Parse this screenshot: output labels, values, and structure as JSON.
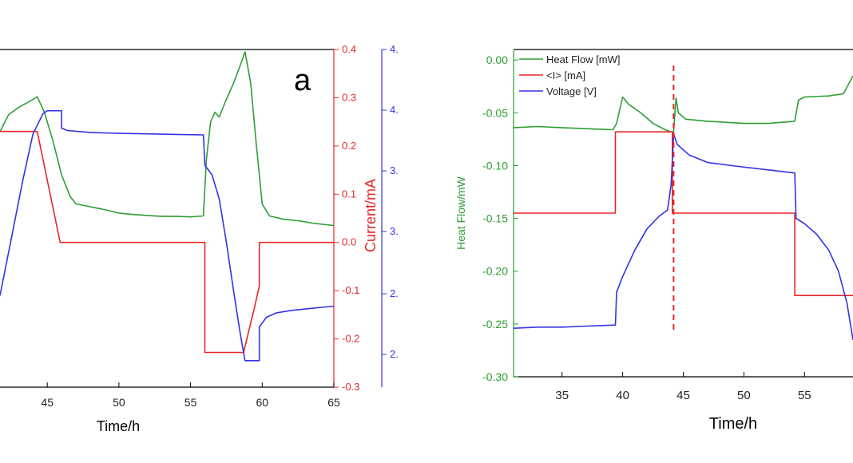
{
  "chart_data": [
    {
      "type": "line",
      "panel_label": "a",
      "xlabel": "Time/h",
      "x_ticks": [
        "45",
        "50",
        "55",
        "60",
        "65"
      ],
      "xlim": [
        41.7,
        65
      ],
      "y_right_current": {
        "label": "Current/mA",
        "color": "#e8262a",
        "ticks": [
          "0.4",
          "0.3",
          "0.2",
          "0.1",
          "0.0",
          "-0.1",
          "-0.2",
          "-0.3"
        ],
        "ylim": [
          -0.3,
          0.4
        ]
      },
      "y_right_voltage": {
        "ticks": [
          "4.",
          "4.",
          "3.",
          "3.",
          "2.",
          "2."
        ],
        "color": "#3232e6"
      },
      "series": [
        {
          "color": "#2e9e34",
          "points": [
            [
              41.7,
              0.23
            ],
            [
              42.3,
              0.265
            ],
            [
              43.0,
              0.28
            ],
            [
              43.8,
              0.293
            ],
            [
              44.3,
              0.302
            ],
            [
              44.8,
              0.27
            ],
            [
              45.4,
              0.21
            ],
            [
              46.0,
              0.14
            ],
            [
              46.6,
              0.095
            ],
            [
              47.0,
              0.08
            ],
            [
              48.0,
              0.074
            ],
            [
              49.0,
              0.068
            ],
            [
              50.0,
              0.061
            ],
            [
              51.0,
              0.058
            ],
            [
              52.0,
              0.056
            ],
            [
              53.0,
              0.054
            ],
            [
              54.0,
              0.054
            ],
            [
              55.0,
              0.053
            ],
            [
              55.9,
              0.055
            ],
            [
              56.1,
              0.17
            ],
            [
              56.4,
              0.25
            ],
            [
              56.7,
              0.27
            ],
            [
              57.0,
              0.26
            ],
            [
              57.4,
              0.29
            ],
            [
              58.0,
              0.33
            ],
            [
              58.5,
              0.37
            ],
            [
              58.8,
              0.395
            ],
            [
              59.2,
              0.33
            ],
            [
              59.6,
              0.2
            ],
            [
              60.0,
              0.08
            ],
            [
              60.5,
              0.055
            ],
            [
              61.5,
              0.048
            ],
            [
              62.5,
              0.045
            ],
            [
              63.5,
              0.04
            ],
            [
              65.0,
              0.035
            ]
          ]
        },
        {
          "color": "#e8262a",
          "points": [
            [
              41.7,
              0.23
            ],
            [
              44.3,
              0.23
            ],
            [
              45.9,
              0.0
            ],
            [
              55.9,
              0.0
            ],
            [
              56.0,
              0.0
            ],
            [
              56.0,
              -0.228
            ],
            [
              58.7,
              -0.228
            ],
            [
              59.5,
              -0.13
            ],
            [
              59.8,
              -0.09
            ],
            [
              59.8,
              0.0
            ],
            [
              65.0,
              0.0
            ]
          ]
        },
        {
          "color": "#3232e6",
          "points": [
            [
              41.7,
              -0.11
            ],
            [
              42.5,
              0.01
            ],
            [
              43.3,
              0.13
            ],
            [
              44.0,
              0.225
            ],
            [
              44.7,
              0.267
            ],
            [
              45.0,
              0.273
            ],
            [
              46.0,
              0.273
            ],
            [
              46.0,
              0.237
            ],
            [
              46.4,
              0.232
            ],
            [
              48.0,
              0.228
            ],
            [
              50.0,
              0.226
            ],
            [
              52.0,
              0.225
            ],
            [
              54.0,
              0.224
            ],
            [
              55.9,
              0.223
            ],
            [
              56.0,
              0.16
            ],
            [
              56.5,
              0.14
            ],
            [
              57.0,
              0.09
            ],
            [
              57.5,
              0.0
            ],
            [
              58.0,
              -0.1
            ],
            [
              58.5,
              -0.195
            ],
            [
              58.8,
              -0.245
            ],
            [
              59.8,
              -0.245
            ],
            [
              59.8,
              -0.175
            ],
            [
              60.3,
              -0.155
            ],
            [
              61.0,
              -0.146
            ],
            [
              62.0,
              -0.141
            ],
            [
              63.0,
              -0.138
            ],
            [
              65.0,
              -0.132
            ]
          ]
        }
      ]
    },
    {
      "type": "line",
      "xlabel": "Time/h",
      "ylabel": "Heat Flow/mW",
      "x_ticks": [
        "35",
        "40",
        "45",
        "50",
        "55"
      ],
      "xlim": [
        31,
        59
      ],
      "y_ticks": [
        "0.00",
        "-0.05",
        "-0.10",
        "-0.15",
        "-0.20",
        "-0.25",
        "-0.30"
      ],
      "ylim": [
        -0.3,
        0.01
      ],
      "annotation": {
        "type": "dashed-vertical-line",
        "x": 44.2,
        "color": "#e8262a"
      },
      "legend": {
        "placement": "top-left",
        "entries": [
          "Heat Flow [mW]",
          "<I> [mA]",
          "Voltage [V]"
        ]
      },
      "series": [
        {
          "name": "Heat Flow [mW]",
          "color": "#2e9e34",
          "points": [
            [
              31.0,
              -0.064
            ],
            [
              33.0,
              -0.063
            ],
            [
              35.0,
              -0.064
            ],
            [
              37.0,
              -0.065
            ],
            [
              39.2,
              -0.066
            ],
            [
              39.5,
              -0.06
            ],
            [
              40.0,
              -0.035
            ],
            [
              40.5,
              -0.042
            ],
            [
              41.5,
              -0.05
            ],
            [
              42.5,
              -0.06
            ],
            [
              43.5,
              -0.066
            ],
            [
              44.0,
              -0.068
            ],
            [
              44.2,
              -0.068
            ],
            [
              44.4,
              -0.036
            ],
            [
              44.6,
              -0.05
            ],
            [
              45.2,
              -0.056
            ],
            [
              47.0,
              -0.058
            ],
            [
              50.0,
              -0.06
            ],
            [
              52.0,
              -0.06
            ],
            [
              54.2,
              -0.058
            ],
            [
              54.5,
              -0.038
            ],
            [
              55.0,
              -0.035
            ],
            [
              57.0,
              -0.034
            ],
            [
              58.2,
              -0.032
            ],
            [
              59.0,
              -0.015
            ]
          ]
        },
        {
          "name": "<I> [mA]",
          "color": "#e8262a",
          "points": [
            [
              31.0,
              -0.145
            ],
            [
              39.4,
              -0.145
            ],
            [
              39.4,
              -0.068
            ],
            [
              43.9,
              -0.068
            ],
            [
              44.1,
              -0.068
            ],
            [
              44.1,
              -0.145
            ],
            [
              54.2,
              -0.145
            ],
            [
              54.2,
              -0.223
            ],
            [
              59.0,
              -0.223
            ]
          ]
        },
        {
          "name": "Voltage [V]",
          "color": "#3232e6",
          "points": [
            [
              31.0,
              -0.254
            ],
            [
              33.0,
              -0.253
            ],
            [
              35.0,
              -0.253
            ],
            [
              37.0,
              -0.252
            ],
            [
              39.4,
              -0.251
            ],
            [
              39.5,
              -0.22
            ],
            [
              40.0,
              -0.205
            ],
            [
              41.0,
              -0.18
            ],
            [
              42.0,
              -0.16
            ],
            [
              43.0,
              -0.148
            ],
            [
              43.7,
              -0.142
            ],
            [
              44.0,
              -0.118
            ],
            [
              44.2,
              -0.07
            ],
            [
              44.5,
              -0.08
            ],
            [
              45.5,
              -0.09
            ],
            [
              47.0,
              -0.097
            ],
            [
              49.0,
              -0.1
            ],
            [
              52.0,
              -0.104
            ],
            [
              54.2,
              -0.107
            ],
            [
              54.3,
              -0.15
            ],
            [
              55.0,
              -0.155
            ],
            [
              56.0,
              -0.165
            ],
            [
              57.0,
              -0.18
            ],
            [
              57.8,
              -0.2
            ],
            [
              58.5,
              -0.23
            ],
            [
              59.0,
              -0.265
            ]
          ]
        }
      ]
    }
  ]
}
